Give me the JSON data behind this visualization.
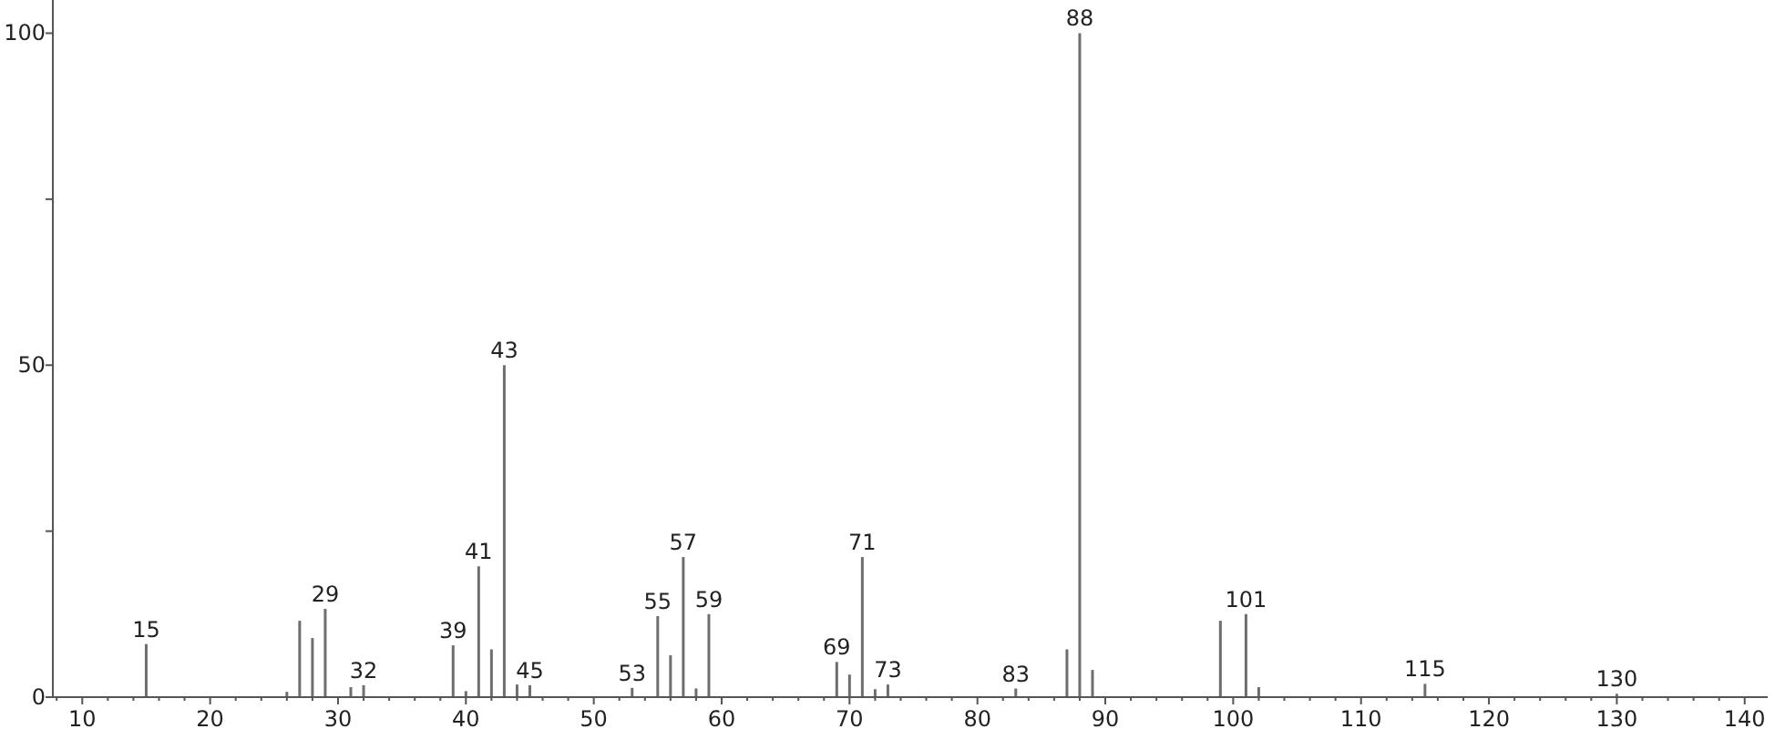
{
  "chart_data": {
    "type": "bar",
    "color": "#6e6e6e",
    "x": [
      15,
      26,
      27,
      28,
      29,
      31,
      32,
      39,
      40,
      41,
      42,
      43,
      44,
      45,
      53,
      55,
      56,
      57,
      58,
      59,
      69,
      70,
      71,
      72,
      73,
      83,
      87,
      88,
      89,
      99,
      101,
      102,
      115,
      130
    ],
    "values": [
      8,
      0.8,
      11.5,
      8.9,
      13.3,
      1.5,
      1.8,
      7.8,
      0.9,
      19.7,
      7.2,
      50,
      1.9,
      1.8,
      1.4,
      12.2,
      6.3,
      21.1,
      1.3,
      12.5,
      5.3,
      3.4,
      21.1,
      1.2,
      1.9,
      1.3,
      7.2,
      100,
      4.1,
      11.5,
      12.5,
      1.5,
      2,
      0.5
    ],
    "xlim": [
      7.7,
      141.8
    ],
    "ylim": [
      0,
      105
    ],
    "xticks": [
      {
        "value": 8,
        "label": null
      },
      10,
      {
        "value": 12,
        "label": null
      },
      {
        "value": 14,
        "label": null
      },
      {
        "value": 16,
        "label": null
      },
      {
        "value": 18,
        "label": null
      },
      20,
      {
        "value": 22,
        "label": null
      },
      {
        "value": 24,
        "label": null
      },
      {
        "value": 26,
        "label": null
      },
      {
        "value": 28,
        "label": null
      },
      30,
      {
        "value": 32,
        "label": null
      },
      {
        "value": 34,
        "label": null
      },
      {
        "value": 36,
        "label": null
      },
      {
        "value": 38,
        "label": null
      },
      40,
      {
        "value": 42,
        "label": null
      },
      {
        "value": 44,
        "label": null
      },
      {
        "value": 46,
        "label": null
      },
      {
        "value": 48,
        "label": null
      },
      50,
      {
        "value": 52,
        "label": null
      },
      {
        "value": 54,
        "label": null
      },
      {
        "value": 56,
        "label": null
      },
      {
        "value": 58,
        "label": null
      },
      60,
      {
        "value": 62,
        "label": null
      },
      {
        "value": 64,
        "label": null
      },
      {
        "value": 66,
        "label": null
      },
      {
        "value": 68,
        "label": null
      },
      70,
      {
        "value": 72,
        "label": null
      },
      {
        "value": 74,
        "label": null
      },
      {
        "value": 76,
        "label": null
      },
      {
        "value": 78,
        "label": null
      },
      80,
      {
        "value": 82,
        "label": null
      },
      {
        "value": 84,
        "label": null
      },
      {
        "value": 86,
        "label": null
      },
      {
        "value": 88,
        "label": null
      },
      90,
      {
        "value": 92,
        "label": null
      },
      {
        "value": 94,
        "label": null
      },
      {
        "value": 96,
        "label": null
      },
      {
        "value": 98,
        "label": null
      },
      100,
      {
        "value": 102,
        "label": null
      },
      {
        "value": 104,
        "label": null
      },
      {
        "value": 106,
        "label": null
      },
      {
        "value": 108,
        "label": null
      },
      110,
      {
        "value": 112,
        "label": null
      },
      {
        "value": 114,
        "label": null
      },
      {
        "value": 116,
        "label": null
      },
      {
        "value": 118,
        "label": null
      },
      120,
      {
        "value": 122,
        "label": null
      },
      {
        "value": 124,
        "label": null
      },
      {
        "value": 126,
        "label": null
      },
      {
        "value": 128,
        "label": null
      },
      130,
      {
        "value": 132,
        "label": null
      },
      {
        "value": 134,
        "label": null
      },
      {
        "value": 136,
        "label": null
      },
      {
        "value": 138,
        "label": null
      },
      140
    ],
    "yticks": [
      0,
      {
        "value": 25,
        "label": null
      },
      50,
      {
        "value": 75,
        "label": null
      },
      100
    ],
    "annotations": [
      {
        "text": "15",
        "x": 15,
        "y": 8
      },
      {
        "text": "29",
        "x": 29,
        "y": 13.3
      },
      {
        "text": "32",
        "x": 32,
        "y": 1.8
      },
      {
        "text": "39",
        "x": 39,
        "y": 7.8
      },
      {
        "text": "41",
        "x": 41,
        "y": 19.7
      },
      {
        "text": "43",
        "x": 43,
        "y": 50
      },
      {
        "text": "45",
        "x": 45,
        "y": 1.8
      },
      {
        "text": "53",
        "x": 53,
        "y": 1.4
      },
      {
        "text": "55",
        "x": 55,
        "y": 12.2
      },
      {
        "text": "57",
        "x": 57,
        "y": 21.1
      },
      {
        "text": "59",
        "x": 59,
        "y": 12.5
      },
      {
        "text": "69",
        "x": 69,
        "y": 5.3
      },
      {
        "text": "71",
        "x": 71,
        "y": 21.1
      },
      {
        "text": "73",
        "x": 73,
        "y": 1.9
      },
      {
        "text": "83",
        "x": 83,
        "y": 1.3
      },
      {
        "text": "88",
        "x": 88,
        "y": 100
      },
      {
        "text": "101",
        "x": 101,
        "y": 12.5
      },
      {
        "text": "115",
        "x": 115,
        "y": 2
      },
      {
        "text": "130",
        "x": 130,
        "y": 0.5
      }
    ],
    "grid": false
  }
}
